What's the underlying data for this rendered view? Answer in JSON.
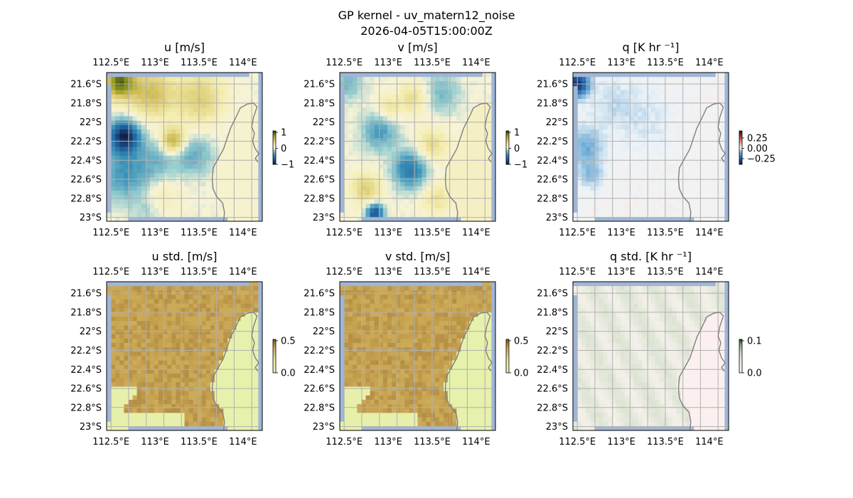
{
  "figure": {
    "suptitle_line1": "GP kernel - uv_matern12_noise",
    "suptitle_line2": "2026-04-05T15:00:00Z"
  },
  "colors": {
    "ocean_mask": "#9fb6d9",
    "grid": "#b0b0b0",
    "coastline": "#808080",
    "frame": "#000000"
  },
  "chart_data": [
    {
      "type": "heatmap",
      "id": "u",
      "title": "u [m/s]",
      "palette": "delta",
      "xticks": [
        "112.5°E",
        "113°E",
        "113.5°E",
        "114°E"
      ],
      "yticks": [
        "21.6°S",
        "21.8°S",
        "22°S",
        "22.2°S",
        "22.4°S",
        "22.6°S",
        "22.8°S",
        "23°S"
      ],
      "xlim": [
        112.45,
        114.22
      ],
      "ylim": [
        -23.04,
        -21.48
      ],
      "colorbar": {
        "ticks": [
          "1",
          "0",
          "−1"
        ],
        "range": [
          -1.2,
          1.2
        ]
      },
      "seed": 11,
      "features": [
        {
          "lon": 112.65,
          "lat": -22.15,
          "amp": -1.1,
          "sigma": 0.12
        },
        {
          "lon": 112.65,
          "lat": -22.55,
          "amp": -0.45,
          "sigma": 0.2
        },
        {
          "lon": 113.05,
          "lat": -22.4,
          "amp": -0.3,
          "sigma": 0.18
        },
        {
          "lon": 112.6,
          "lat": -21.58,
          "amp": 1.0,
          "sigma": 0.12
        },
        {
          "lon": 112.95,
          "lat": -21.7,
          "amp": 0.55,
          "sigma": 0.18
        },
        {
          "lon": 113.2,
          "lat": -22.2,
          "amp": 0.75,
          "sigma": 0.1
        },
        {
          "lon": 113.5,
          "lat": -21.75,
          "amp": 0.45,
          "sigma": 0.2
        },
        {
          "lon": 113.45,
          "lat": -22.35,
          "amp": -0.35,
          "sigma": 0.15
        },
        {
          "lon": 113.1,
          "lat": -22.75,
          "amp": 0.2,
          "sigma": 0.15
        },
        {
          "lon": 112.9,
          "lat": -22.95,
          "amp": -0.15,
          "sigma": 0.12
        }
      ],
      "land_value": 0.05
    },
    {
      "type": "heatmap",
      "id": "v",
      "title": "v [m/s]",
      "palette": "delta",
      "xticks": [
        "112.5°E",
        "113°E",
        "113.5°E",
        "114°E"
      ],
      "yticks": [
        "21.6°S",
        "21.8°S",
        "22°S",
        "22.2°S",
        "22.4°S",
        "22.6°S",
        "22.8°S",
        "23°S"
      ],
      "xlim": [
        112.45,
        114.22
      ],
      "ylim": [
        -23.04,
        -21.48
      ],
      "colorbar": {
        "ticks": [
          "1",
          "0",
          "−1"
        ],
        "range": [
          -1.2,
          1.2
        ]
      },
      "seed": 23,
      "features": [
        {
          "lon": 113.25,
          "lat": -22.5,
          "amp": -0.65,
          "sigma": 0.14
        },
        {
          "lon": 112.9,
          "lat": -22.1,
          "amp": -0.45,
          "sigma": 0.14
        },
        {
          "lon": 112.85,
          "lat": -22.95,
          "amp": -0.9,
          "sigma": 0.07
        },
        {
          "lon": 112.55,
          "lat": -21.6,
          "amp": -0.3,
          "sigma": 0.12
        },
        {
          "lon": 113.6,
          "lat": -21.7,
          "amp": -0.3,
          "sigma": 0.15
        },
        {
          "lon": 113.3,
          "lat": -21.75,
          "amp": 0.35,
          "sigma": 0.12
        },
        {
          "lon": 113.5,
          "lat": -22.25,
          "amp": 0.35,
          "sigma": 0.13
        },
        {
          "lon": 112.75,
          "lat": -22.7,
          "amp": 0.45,
          "sigma": 0.12
        },
        {
          "lon": 113.0,
          "lat": -21.85,
          "amp": 0.3,
          "sigma": 0.1
        },
        {
          "lon": 113.55,
          "lat": -22.8,
          "amp": 0.3,
          "sigma": 0.12
        },
        {
          "lon": 114.15,
          "lat": -22.1,
          "amp": -0.9,
          "sigma": 0.06
        }
      ],
      "land_value": 0.1
    },
    {
      "type": "heatmap",
      "id": "q",
      "title": "q [K hr ⁻¹]",
      "palette": "balance",
      "xticks": [
        "112.5°E",
        "113°E",
        "113.5°E",
        "114°E"
      ],
      "yticks": [
        "21.6°S",
        "21.8°S",
        "22°S",
        "22.2°S",
        "22.4°S",
        "22.6°S",
        "22.8°S",
        "23°S"
      ],
      "xlim": [
        112.45,
        114.22
      ],
      "ylim": [
        -23.04,
        -21.48
      ],
      "colorbar": {
        "ticks": [
          "0.25",
          "0.00",
          "−0.25"
        ],
        "range": [
          -0.35,
          0.35
        ]
      },
      "seed": 37,
      "features": [
        {
          "lon": 112.5,
          "lat": -21.6,
          "amp": -0.3,
          "sigma": 0.09
        },
        {
          "lon": 112.6,
          "lat": -22.25,
          "amp": -0.1,
          "sigma": 0.14
        },
        {
          "lon": 112.65,
          "lat": -22.55,
          "amp": -0.08,
          "sigma": 0.1
        },
        {
          "lon": 112.9,
          "lat": -21.8,
          "amp": -0.04,
          "sigma": 0.2
        },
        {
          "lon": 113.3,
          "lat": -22.0,
          "amp": -0.03,
          "sigma": 0.25
        }
      ],
      "land_value": 0.0
    },
    {
      "type": "heatmap",
      "id": "u_std",
      "title": "u std. [m/s]",
      "palette": "std_warm",
      "xticks": [
        "112.5°E",
        "113°E",
        "113.5°E",
        "114°E"
      ],
      "yticks": [
        "21.6°S",
        "21.8°S",
        "22°S",
        "22.2°S",
        "22.4°S",
        "22.6°S",
        "22.8°S",
        "23°S"
      ],
      "xlim": [
        112.45,
        114.22
      ],
      "ylim": [
        -23.04,
        -21.48
      ],
      "colorbar": {
        "ticks": [
          "0.5",
          "0.0"
        ],
        "range": [
          0,
          0.55
        ]
      },
      "seed": 51,
      "base": 0.42,
      "features": [],
      "land_value": 0.05
    },
    {
      "type": "heatmap",
      "id": "v_std",
      "title": "v std. [m/s]",
      "palette": "std_warm",
      "xticks": [
        "112.5°E",
        "113°E",
        "113.5°E",
        "114°E"
      ],
      "yticks": [
        "21.6°S",
        "21.8°S",
        "22°S",
        "22.2°S",
        "22.4°S",
        "22.6°S",
        "22.8°S",
        "23°S"
      ],
      "xlim": [
        112.45,
        114.22
      ],
      "ylim": [
        -23.04,
        -21.48
      ],
      "colorbar": {
        "ticks": [
          "0.5",
          "0.0"
        ],
        "range": [
          0,
          0.55
        ]
      },
      "seed": 63,
      "base": 0.42,
      "features": [],
      "land_value": 0.05
    },
    {
      "type": "heatmap",
      "id": "q_std",
      "title": "q std. [K hr ⁻¹]",
      "palette": "std_green",
      "xticks": [
        "112.5°E",
        "113°E",
        "113.5°E",
        "114°E"
      ],
      "yticks": [
        "21.6°S",
        "21.8°S",
        "22°S",
        "22.2°S",
        "22.4°S",
        "22.6°S",
        "22.8°S",
        "23°S"
      ],
      "xlim": [
        112.45,
        114.22
      ],
      "ylim": [
        -23.04,
        -21.48
      ],
      "colorbar": {
        "ticks": [
          "0.1",
          "0.0"
        ],
        "range": [
          0,
          0.12
        ]
      },
      "seed": 79,
      "base": 0.03,
      "features": [],
      "land_value": 0.0
    }
  ]
}
